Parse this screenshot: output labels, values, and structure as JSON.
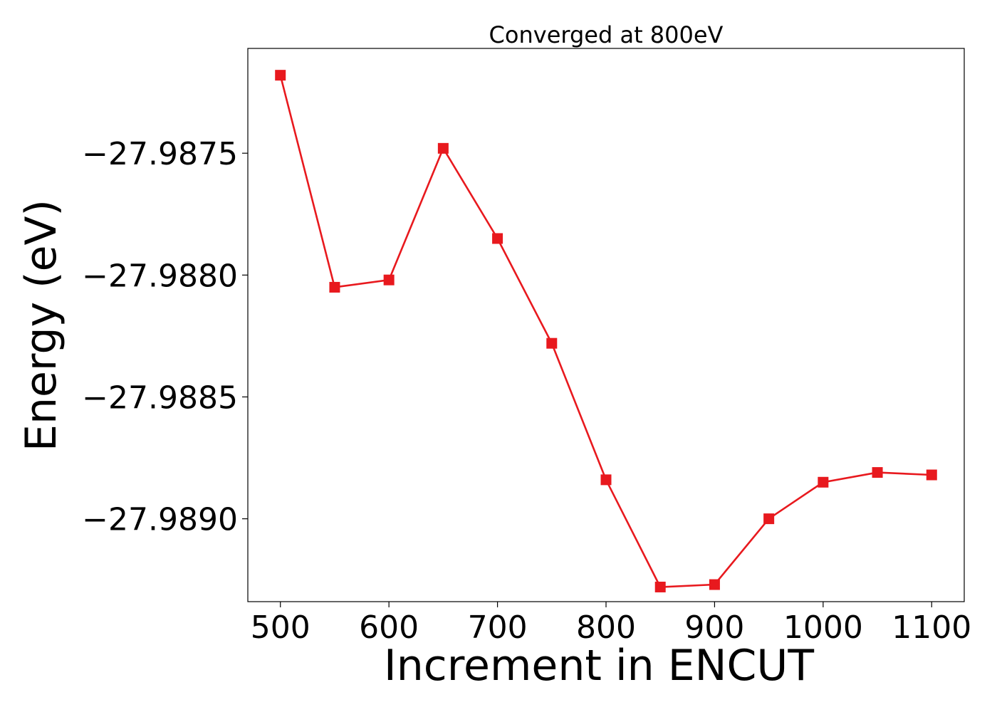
{
  "chart_data": {
    "type": "line",
    "title": "Converged at 800eV",
    "xlabel": "Increment in ENCUT",
    "ylabel": "Energy (eV)",
    "x": [
      500,
      550,
      600,
      650,
      700,
      750,
      800,
      850,
      900,
      950,
      1000,
      1050,
      1100
    ],
    "series": [
      {
        "values": [
          -27.98718,
          -27.98805,
          -27.98802,
          -27.98748,
          -27.98785,
          -27.98828,
          -27.98884,
          -27.98928,
          -27.98927,
          -27.989,
          -27.98885,
          -27.98881,
          -27.98882
        ],
        "color": "#e8191e",
        "marker": "square"
      }
    ],
    "xticks": [
      500,
      600,
      700,
      800,
      900,
      1000,
      1100
    ],
    "xtick_labels": [
      "500",
      "600",
      "700",
      "800",
      "900",
      "1000",
      "1100"
    ],
    "yticks": [
      -27.9875,
      -27.988,
      -27.9885,
      -27.989
    ],
    "ytick_labels": [
      "−27.9875",
      "−27.9880",
      "−27.9885",
      "−27.9890"
    ],
    "xlim": [
      470,
      1130
    ],
    "ylim": [
      -27.98934,
      -27.98707
    ],
    "grid": false,
    "legend": "none"
  }
}
